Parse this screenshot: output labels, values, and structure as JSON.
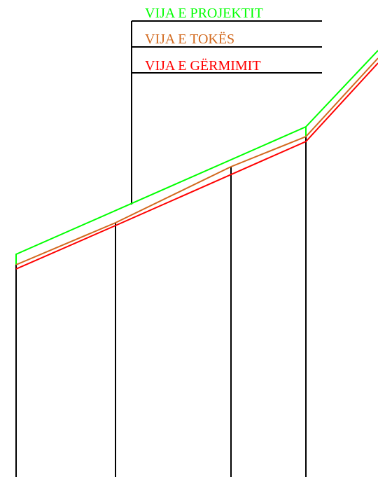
{
  "legend": [
    {
      "label": "VIJA E PROJEKTIT",
      "color": "#00ff00"
    },
    {
      "label": "VIJA E TOKËS",
      "color": "#d2691e"
    },
    {
      "label": "VIJA E GËRMIMIT",
      "color": "#ff0000"
    }
  ]
}
